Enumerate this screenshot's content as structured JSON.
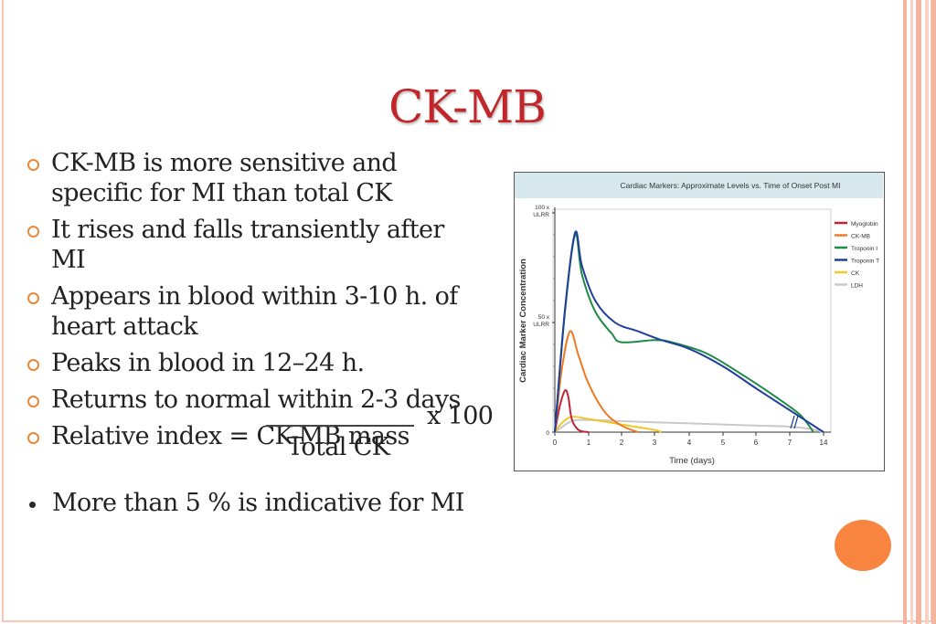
{
  "slide": {
    "title": "CK-MB",
    "bullets": [
      {
        "lines": [
          "CK-MB is more sensitive and",
          "specific for MI than total CK"
        ]
      },
      {
        "lines": [
          "It rises and falls transiently after",
          "MI"
        ]
      },
      {
        "lines": [
          "Appears in blood within 3-10 h. of",
          "heart attack"
        ]
      },
      {
        "lines": [
          "Peaks in blood in 12–24 h."
        ]
      },
      {
        "lines": [
          "Returns to normal within 2-3 days"
        ]
      },
      {
        "lines": [
          "Relative index = CK-MB mass"
        ]
      }
    ],
    "formula": {
      "multiplier": "x 100",
      "denominator": "Total CK"
    },
    "note": "More than 5 % is indicative for MI"
  },
  "colors": {
    "title": "#c0262a",
    "bullet_mark": "#e8893b",
    "accent_circle": "#f7843f",
    "frame": "#f6c7b6"
  },
  "chart_data": {
    "type": "line",
    "title": "Cardiac Markers: Approximate Levels vs. Time of Onset Post MI",
    "xlabel": "Time (days)",
    "ylabel": "Cardiac Marker Concentration",
    "x_ticks": [
      "0",
      "1",
      "2",
      "3",
      "4",
      "5",
      "6",
      "7",
      "14"
    ],
    "y_ticks": [
      "0",
      "50 x\nULRR",
      "100 x\nULRR"
    ],
    "ylim": [
      0,
      100
    ],
    "legend_position": "right",
    "series": [
      {
        "name": "Myoglobin",
        "color": "#c0263a",
        "points": [
          [
            0,
            0
          ],
          [
            0.15,
            12
          ],
          [
            0.3,
            19
          ],
          [
            0.4,
            16
          ],
          [
            0.5,
            6
          ],
          [
            0.7,
            1
          ],
          [
            1,
            0
          ]
        ]
      },
      {
        "name": "CK-MB",
        "color": "#ef7a22",
        "points": [
          [
            0,
            0
          ],
          [
            0.2,
            28
          ],
          [
            0.45,
            46
          ],
          [
            0.7,
            35
          ],
          [
            1,
            22
          ],
          [
            1.5,
            9
          ],
          [
            2,
            3
          ],
          [
            2.5,
            0
          ]
        ]
      },
      {
        "name": "Troponin I",
        "color": "#1f8a46",
        "points": [
          [
            0,
            0
          ],
          [
            0.3,
            55
          ],
          [
            0.6,
            90
          ],
          [
            0.8,
            72
          ],
          [
            1.2,
            55
          ],
          [
            1.7,
            45
          ],
          [
            2,
            41
          ],
          [
            3,
            42
          ],
          [
            3.5,
            41
          ],
          [
            4.5,
            36
          ],
          [
            5.5,
            27
          ],
          [
            6.5,
            17
          ],
          [
            7.3,
            8
          ],
          [
            7.7,
            0
          ]
        ]
      },
      {
        "name": "Troponin T",
        "color": "#1f3f9a",
        "points": [
          [
            0,
            0
          ],
          [
            0.3,
            56
          ],
          [
            0.6,
            91
          ],
          [
            0.8,
            76
          ],
          [
            1.2,
            60
          ],
          [
            1.8,
            50
          ],
          [
            2.5,
            46
          ],
          [
            3.2,
            42
          ],
          [
            4,
            38
          ],
          [
            5,
            30
          ],
          [
            6,
            20
          ],
          [
            7,
            10
          ],
          [
            7.6,
            4
          ],
          [
            8,
            0
          ]
        ]
      },
      {
        "name": "CK",
        "color": "#f0c82a",
        "points": [
          [
            0,
            0
          ],
          [
            0.2,
            4
          ],
          [
            0.5,
            7
          ],
          [
            1,
            6
          ],
          [
            2,
            3.5
          ],
          [
            3,
            1
          ],
          [
            3.2,
            0
          ]
        ]
      },
      {
        "name": "LDH",
        "color": "#c9c9c9",
        "points": [
          [
            0,
            0
          ],
          [
            0.5,
            5
          ],
          [
            1,
            5.5
          ],
          [
            2,
            5
          ],
          [
            3,
            4.5
          ],
          [
            4,
            4
          ],
          [
            5,
            3.5
          ],
          [
            6,
            3
          ],
          [
            7,
            2.5
          ],
          [
            7.6,
            1.5
          ],
          [
            8,
            0
          ]
        ]
      }
    ]
  }
}
